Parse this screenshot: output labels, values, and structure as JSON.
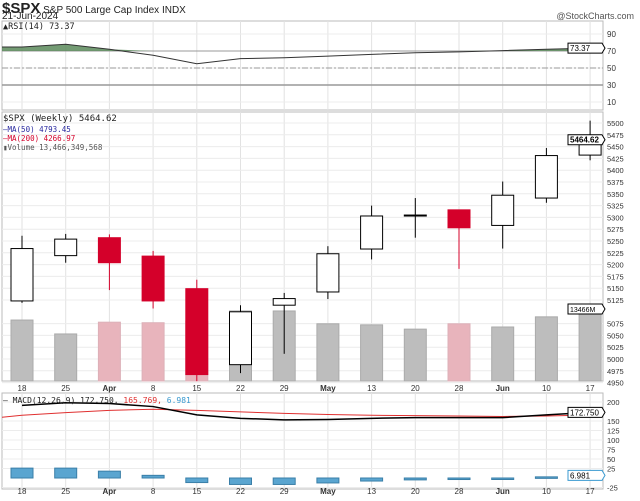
{
  "header": {
    "symbol": "$SPX",
    "name": "S&P 500 Large Cap Index",
    "exchange": "INDX",
    "date": "21-Jun-2024",
    "watermark": "@StockCharts.com"
  },
  "rsi": {
    "label": "RSI(14) 73.37",
    "last": "73.37"
  },
  "price": {
    "label": "$SPX (Weekly) 5464.62",
    "last": "5464.62",
    "ma50": "MA(50) 4793.45",
    "ma200": "MA(200) 4266.97",
    "volume": "Volume 13,466,349,568",
    "volume_flag": "13466M"
  },
  "macd": {
    "label_prefix": "MACD(12,26,9) 172.750,",
    "signal_text": " 165.769,",
    "hist_text": " 6.981",
    "last": "172.750",
    "hist_last": "6.981"
  },
  "colors": {
    "up": "#000000",
    "down": "#d4002a",
    "volume_up": "#bdbdbd",
    "volume_down": "#e8b4bc",
    "rsi_fill": "#5b8a5b",
    "macd": "#000000",
    "signal": "#e03030",
    "histogram": "#5aa5d0"
  },
  "chart_data": {
    "type": "candlestick",
    "x_labels": [
      "18",
      "25",
      "Apr",
      "8",
      "15",
      "22",
      "29",
      "May",
      "13",
      "20",
      "28",
      "Jun",
      "10",
      "17"
    ],
    "open": [
      5123,
      5219,
      5257,
      5218,
      5149,
      4988,
      5114,
      5142,
      5233,
      5305,
      5316,
      5283,
      5341,
      5432
    ],
    "high": [
      5261,
      5265,
      5264,
      5229,
      5168,
      5114,
      5140,
      5239,
      5325,
      5341,
      5316,
      5376,
      5447,
      5505
    ],
    "low": [
      5119,
      5204,
      5146,
      5107,
      4953,
      4970,
      5011,
      5127,
      5211,
      5257,
      5191,
      5234,
      5331,
      5421
    ],
    "close": [
      5234,
      5254,
      5204,
      5123,
      4967,
      5100,
      5128,
      5223,
      5303,
      5304,
      5278,
      5347,
      5431,
      5465
    ],
    "down_weeks": [
      false,
      false,
      true,
      true,
      true,
      false,
      false,
      false,
      false,
      false,
      true,
      false,
      false,
      false
    ],
    "volume": [
      11400000000,
      8800000000,
      11000000000,
      10900000000,
      11200000000,
      13100000000,
      13100000000,
      10700000000,
      10500000000,
      9700000000,
      10700000000,
      10100000000,
      12000000000,
      13466349568
    ],
    "price_ticks": [
      5500,
      5475,
      5450,
      5425,
      5400,
      5375,
      5350,
      5325,
      5300,
      5275,
      5250,
      5225,
      5200,
      5175,
      5150,
      5125,
      5075,
      5050,
      5025,
      5000,
      4975,
      4950
    ],
    "price_range": [
      4942,
      5525
    ],
    "rsi": [
      74.7,
      78,
      72,
      65,
      55,
      61,
      62,
      64,
      66,
      68,
      69,
      70.5,
      72,
      73.37
    ],
    "rsi_ticks": [
      90,
      70,
      50,
      30,
      10
    ],
    "macd_line": [
      191,
      198,
      196,
      188,
      166,
      157,
      153,
      154,
      157,
      159,
      159,
      159,
      166,
      172.75
    ],
    "signal_line": [
      165,
      172,
      178,
      181,
      178,
      174,
      170,
      167,
      165,
      164,
      163,
      162,
      163,
      165.77
    ],
    "histogram": [
      26,
      26,
      18,
      7,
      -12,
      -17,
      -17,
      -13,
      -8,
      -5,
      -4,
      -3,
      3,
      6.98
    ],
    "macd_ticks": [
      200,
      150,
      125,
      100,
      75,
      50,
      25,
      -25
    ],
    "grid": true
  }
}
